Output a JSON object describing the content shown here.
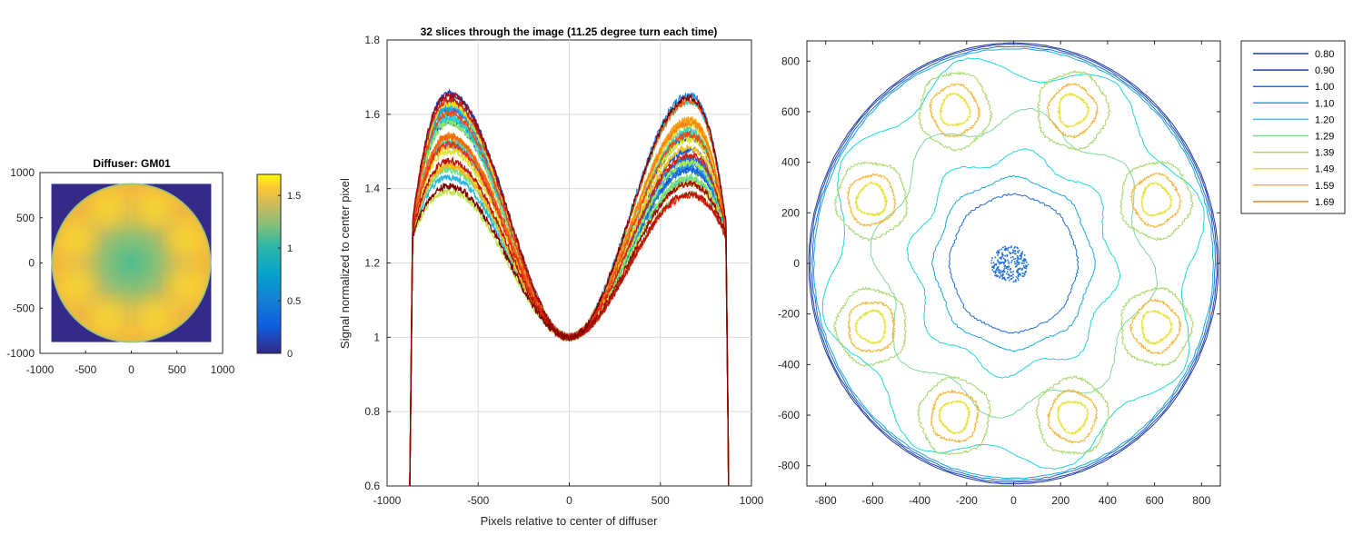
{
  "chart_data": [
    {
      "id": "diffuser",
      "type": "heatmap",
      "title": "Diffuser: GM01",
      "xlim": [
        -1000,
        1000
      ],
      "ylim": [
        -1000,
        1000
      ],
      "xticks": [
        -1000,
        -500,
        0,
        500,
        1000
      ],
      "yticks": [
        1000,
        500,
        0,
        -500,
        -1000
      ],
      "image_extent": [
        -875,
        875
      ],
      "disk_radius": 875,
      "colormap": "parula",
      "colorbar": {
        "range": [
          0,
          1.7
        ],
        "ticks": [
          0,
          0.5,
          1,
          1.5
        ],
        "tick_labels": [
          "0",
          "0.5",
          "1",
          "1.5"
        ]
      },
      "hotspots": {
        "count": 8,
        "radius": 650,
        "start_angle_deg": 67.5
      },
      "colors": {
        "low": "#352A87",
        "mid": "#2CB7A8",
        "high": "#F9DB2B",
        "peak": "#F9FB0E"
      }
    },
    {
      "id": "slices",
      "type": "line",
      "title": "32 slices through the image (11.25 degree turn each time)",
      "xlabel": "Pixels relative to center of diffuser",
      "ylabel": "Signal normalized to center pixel",
      "xlim": [
        -1000,
        1000
      ],
      "ylim": [
        0.6,
        1.8
      ],
      "xticks": [
        -1000,
        -500,
        0,
        500,
        1000
      ],
      "yticks": [
        0.6,
        0.8,
        1,
        1.2,
        1.4,
        1.6,
        1.8
      ],
      "ytick_labels": [
        "0.6",
        "0.8",
        "1",
        "1.2",
        "1.4",
        "1.6",
        "1.8"
      ],
      "grid": true,
      "edge": 875,
      "num_series": 32,
      "peak_position": 660,
      "left_peak_range": [
        1.38,
        1.66
      ],
      "right_peak_range": [
        1.38,
        1.66
      ],
      "colormap": "jet"
    },
    {
      "id": "contour",
      "type": "contour",
      "xlim": [
        -880,
        880
      ],
      "ylim": [
        -880,
        880
      ],
      "xticks": [
        -800,
        -600,
        -400,
        -200,
        0,
        200,
        400,
        600,
        800
      ],
      "yticks": [
        800,
        600,
        400,
        200,
        0,
        -200,
        -400,
        -600,
        -800
      ],
      "levels": [
        "0.80",
        "0.90",
        "1.00",
        "1.10",
        "1.20",
        "1.29",
        "1.39",
        "1.49",
        "1.59",
        "1.69"
      ],
      "level_colors": [
        "#1F3C9B",
        "#1F3FB5",
        "#1F6FD6",
        "#1AA8E0",
        "#22D6D6",
        "#7CD99A",
        "#A6D86A",
        "#E8E23A",
        "#F2B63A",
        "#F07F2A"
      ],
      "legend": "right-top",
      "center_blob": {
        "x": -20,
        "y": 0,
        "radius": 80,
        "color": "#1F6FD6"
      },
      "colors": {
        "box": "#262626",
        "grid": "#ffffff"
      }
    }
  ]
}
